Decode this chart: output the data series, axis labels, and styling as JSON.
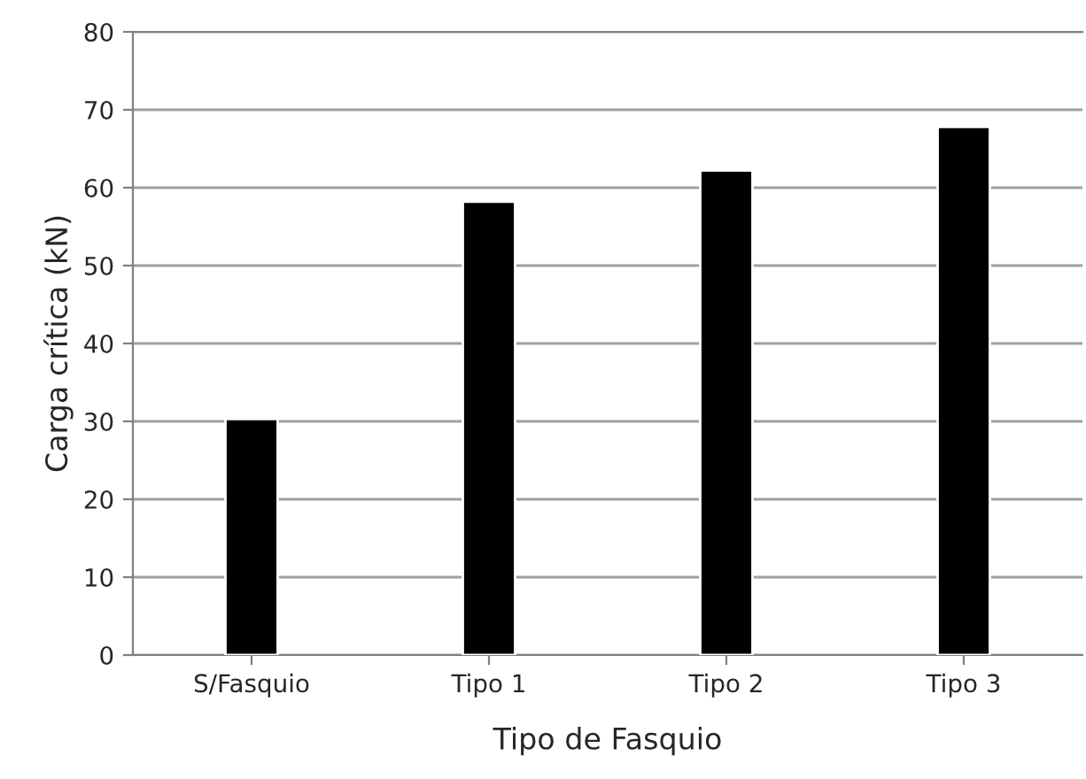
{
  "chart_data": {
    "type": "bar",
    "xlabel": "Tipo de Fasquio",
    "ylabel": "Carga crítica (kN)",
    "categories": [
      "S/Fasquio",
      "Tipo 1",
      "Tipo 2",
      "Tipo 3"
    ],
    "values": [
      30.3,
      58.2,
      62.2,
      67.8
    ],
    "color": "#000000",
    "ylim": [
      0,
      80
    ],
    "yticks": [
      0,
      10,
      20,
      30,
      40,
      50,
      60,
      70,
      80
    ],
    "grid": "y"
  }
}
